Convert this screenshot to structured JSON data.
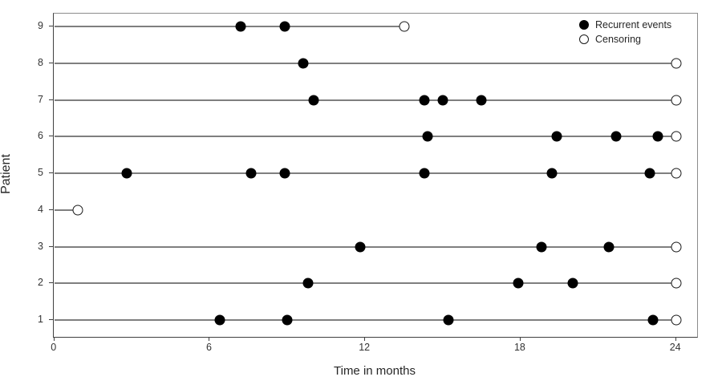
{
  "chart_data": {
    "type": "scatter",
    "title": "",
    "xlabel": "Time in months",
    "ylabel": "Patient",
    "xlim": [
      0,
      24.8
    ],
    "xticks": [
      0,
      6,
      12,
      18,
      24
    ],
    "yticks": [
      1,
      2,
      3,
      4,
      5,
      6,
      7,
      8,
      9
    ],
    "grid": false,
    "legend_position": "top-right-inside",
    "legend": [
      {
        "label": "Recurrent events",
        "marker": "filled-circle"
      },
      {
        "label": "Censoring",
        "marker": "open-circle"
      }
    ],
    "series_description": "Each patient has a follow-up line starting at time 0, filled dots for recurrent events, and an open circle at the censoring time where the line ends.",
    "patients": [
      {
        "patient": 9,
        "events": [
          7.2,
          8.9
        ],
        "censor": 13.5
      },
      {
        "patient": 8,
        "events": [
          9.6
        ],
        "censor": 24
      },
      {
        "patient": 7,
        "events": [
          10.0,
          14.3,
          15.0,
          16.5
        ],
        "censor": 24
      },
      {
        "patient": 6,
        "events": [
          14.4,
          19.4,
          21.7,
          23.3
        ],
        "censor": 24
      },
      {
        "patient": 5,
        "events": [
          2.8,
          7.6,
          8.9,
          14.3,
          19.2,
          23.0
        ],
        "censor": 24
      },
      {
        "patient": 4,
        "events": [],
        "censor": 0.9
      },
      {
        "patient": 3,
        "events": [
          11.8,
          18.8,
          21.4
        ],
        "censor": 24
      },
      {
        "patient": 2,
        "events": [
          9.8,
          17.9,
          20.0
        ],
        "censor": 24
      },
      {
        "patient": 1,
        "events": [
          6.4,
          9.0,
          15.2,
          23.1
        ],
        "censor": 24
      }
    ],
    "colors": {
      "event_marker": "#000000",
      "censor_fill": "#ffffff",
      "censor_stroke": "#1a1a1a",
      "patient_line": "#7f7f7f",
      "axis": "#404040",
      "tick_label": "#333333"
    }
  }
}
